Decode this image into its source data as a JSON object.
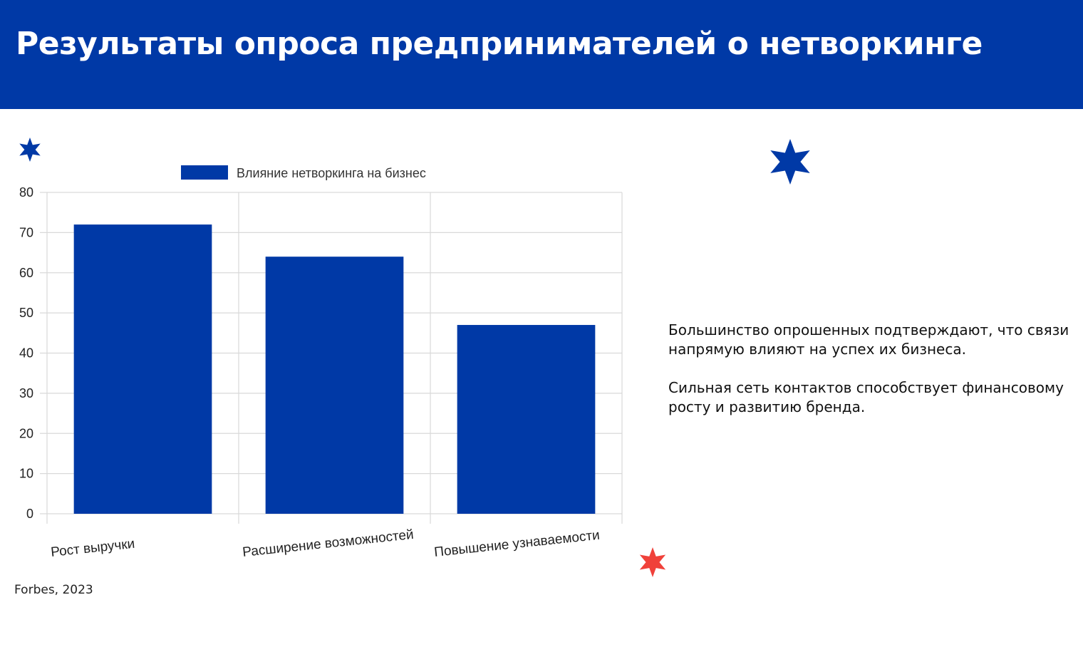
{
  "header": {
    "title": "Результаты опроса предпринимателей о нетворкинге"
  },
  "chart_data": {
    "type": "bar",
    "categories": [
      "Рост выручки",
      "Расширение возможностей",
      "Повышение узнаваемости"
    ],
    "series": [
      {
        "name": "Влияние нетворкинга на бизнес",
        "values": [
          72,
          64,
          47
        ],
        "color": "#0039a6"
      }
    ],
    "ylim": [
      0,
      80
    ],
    "yticks": [
      0,
      10,
      20,
      30,
      40,
      50,
      60,
      70,
      80
    ],
    "grid": true,
    "legend_position": "top",
    "title": "",
    "xlabel": "",
    "ylabel": ""
  },
  "source": "Forbes, 2023",
  "side_text": {
    "paragraph1": "Большинство опрошенных подтверждают, что связи напрямую влияют на успех их бизнеса.",
    "paragraph2": "Сильная сеть контактов способствует финансовому росту и развитию бренда."
  },
  "decorations": {
    "star_blue_color": "#0039a6",
    "star_red_color": "#f0413a",
    "stars": [
      "star-icon",
      "star-icon",
      "star-icon"
    ]
  }
}
